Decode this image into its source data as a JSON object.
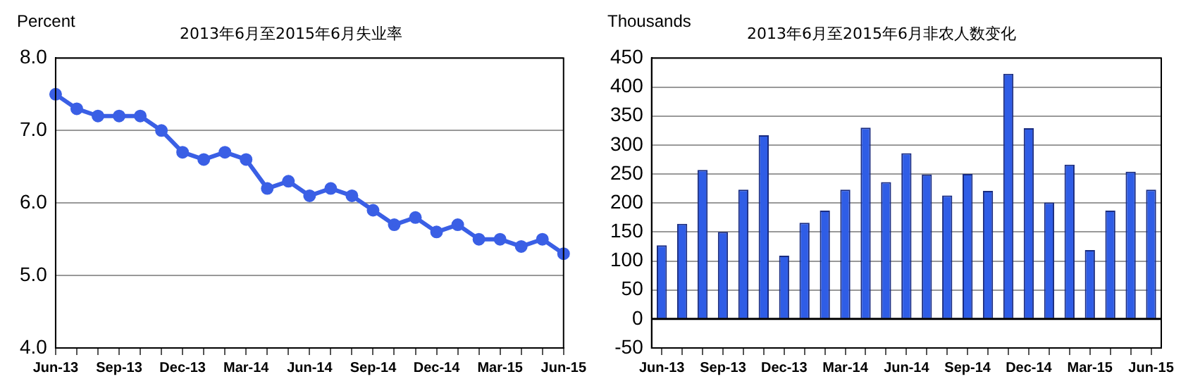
{
  "chart_data": [
    {
      "type": "line",
      "title": "2013年6月至2015年6月失业率",
      "ylabel": "Percent",
      "categories": [
        "Jun-13",
        null,
        null,
        "Sep-13",
        null,
        null,
        "Dec-13",
        null,
        null,
        "Mar-14",
        null,
        null,
        "Jun-14",
        null,
        null,
        "Sep-14",
        null,
        null,
        "Dec-14",
        null,
        null,
        "Mar-15",
        null,
        null,
        "Jun-15"
      ],
      "series": [
        {
          "color": "#3a5fe5",
          "values": [
            7.5,
            7.3,
            7.2,
            7.2,
            7.2,
            7.0,
            6.7,
            6.6,
            6.7,
            6.6,
            6.2,
            6.3,
            6.1,
            6.2,
            6.1,
            5.9,
            5.7,
            5.8,
            5.6,
            5.7,
            5.5,
            5.5,
            5.4,
            5.5,
            5.3
          ]
        }
      ],
      "ylim": [
        4,
        8
      ],
      "yticks": [
        {
          "value": 4,
          "label": "4.0"
        },
        {
          "value": 5,
          "label": "5.0"
        },
        {
          "value": 6,
          "label": "6.0"
        },
        {
          "value": 7,
          "label": "7.0"
        },
        {
          "value": 8,
          "label": "8.0"
        }
      ],
      "grid": "y",
      "legend": false,
      "marker": "circle",
      "line_style": "solid"
    },
    {
      "type": "bar",
      "title": "2013年6月至2015年6月非农人数变化",
      "ylabel": "Thousands",
      "categories": [
        "Jun-13",
        null,
        null,
        "Sep-13",
        null,
        null,
        "Dec-13",
        null,
        null,
        "Mar-14",
        null,
        null,
        "Jun-14",
        null,
        null,
        "Sep-14",
        null,
        null,
        "Dec-14",
        null,
        null,
        "Mar-15",
        null,
        null,
        "Jun-15"
      ],
      "series": [
        {
          "color": "#2f5de6",
          "values": [
            127,
            164,
            257,
            150,
            223,
            317,
            109,
            166,
            187,
            223,
            330,
            236,
            286,
            249,
            213,
            250,
            221,
            423,
            329,
            201,
            266,
            119,
            187,
            254,
            223
          ]
        }
      ],
      "ylim": [
        -50,
        450
      ],
      "yticks": [
        -50,
        0,
        50,
        100,
        150,
        200,
        250,
        300,
        350,
        400,
        450
      ],
      "grid": "y",
      "legend": false
    }
  ]
}
